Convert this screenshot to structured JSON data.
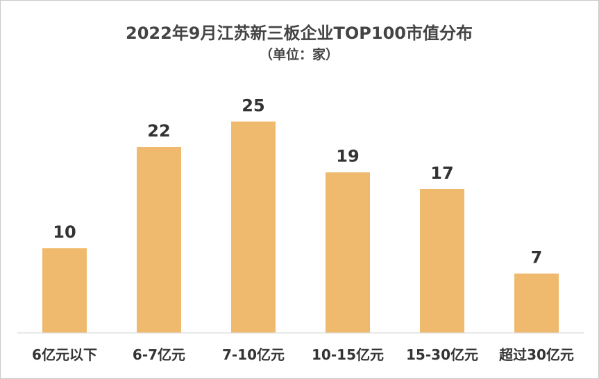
{
  "chart_data": {
    "type": "bar",
    "title": "2022年9月江苏新三板企业TOP100市值分布",
    "subtitle": "（单位：家）",
    "categories": [
      "6亿元以下",
      "6-7亿元",
      "7-10亿元",
      "10-15亿元",
      "15-30亿元",
      "超过30亿元"
    ],
    "values": [
      10,
      22,
      25,
      19,
      17,
      7
    ],
    "ylim": [
      0,
      30
    ],
    "grid": false,
    "legend": "none",
    "bar_color": "#F0BA6E",
    "baseline_color": "#d9d9d9"
  }
}
